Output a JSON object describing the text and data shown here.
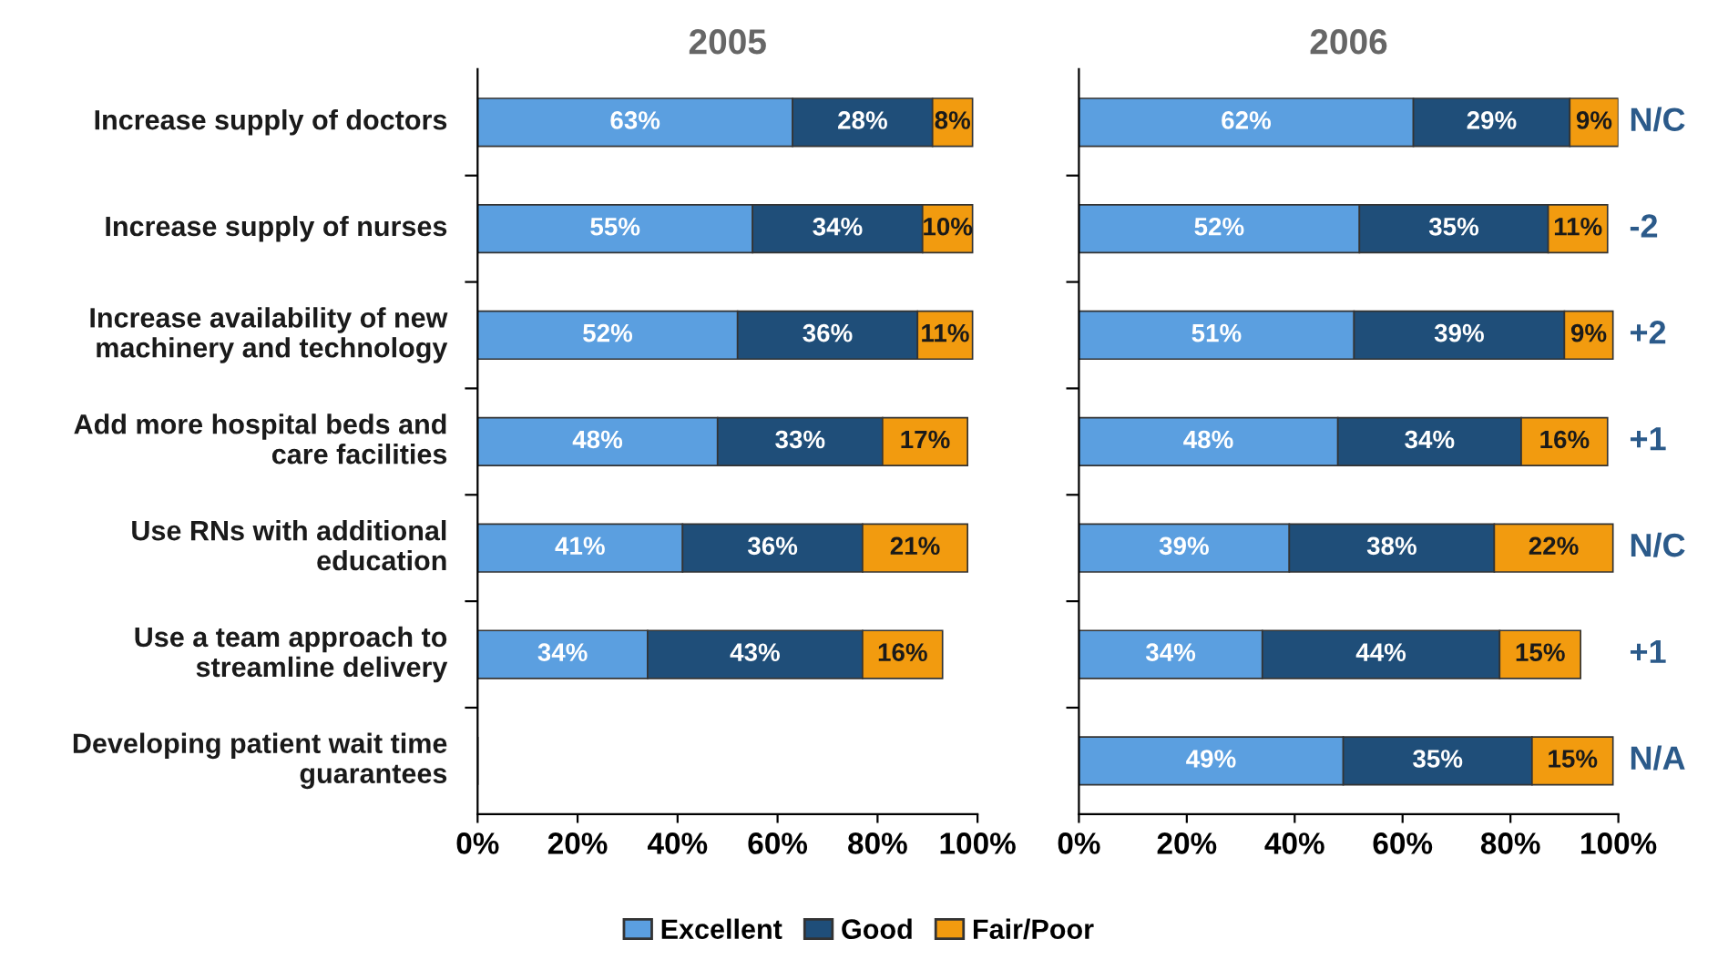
{
  "chart_data": [
    {
      "type": "bar",
      "title": "2005",
      "orientation": "horizontal",
      "stacked": true,
      "legend": false,
      "categories": [
        "Increase supply of doctors",
        "Increase supply of nurses",
        "Increase availability of new\nmachinery and technology",
        "Add more hospital beds and\ncare facilities",
        "Use RNs with additional\neducation",
        "Use a team approach to\nstreamline delivery",
        "Developing patient wait time\nguarantees"
      ],
      "series": [
        {
          "color": "#5b9fe0",
          "values": [
            63,
            55,
            52,
            48,
            41,
            34,
            null
          ],
          "value_labels": [
            "63%",
            "55%",
            "52%",
            "48%",
            "41%",
            "34%",
            null
          ]
        },
        {
          "color": "#1f4e79",
          "values": [
            28,
            34,
            36,
            33,
            36,
            43,
            null
          ],
          "value_labels": [
            "28%",
            "34%",
            "36%",
            "33%",
            "36%",
            "43%",
            null
          ]
        },
        {
          "color": "#f29b0f",
          "values": [
            8,
            10,
            11,
            17,
            21,
            16,
            null
          ],
          "value_labels": [
            "8%",
            "10%",
            "11%",
            "17%",
            "21%",
            "16%",
            null
          ]
        }
      ],
      "xlim": [
        0,
        100
      ],
      "xticks": [
        {
          "value": 0,
          "label": "0%"
        },
        {
          "value": 20,
          "label": "20%"
        },
        {
          "value": 40,
          "label": "40%"
        },
        {
          "value": 60,
          "label": "60%"
        },
        {
          "value": 80,
          "label": "80%"
        },
        {
          "value": 100,
          "label": "100%"
        }
      ]
    },
    {
      "type": "bar",
      "title": "2006",
      "orientation": "horizontal",
      "stacked": true,
      "legend": "bottom",
      "tick_labels": "x",
      "categories": [
        null,
        null,
        null,
        null,
        null,
        null,
        null
      ],
      "series": [
        {
          "name": "Excellent",
          "color": "#5b9fe0",
          "values": [
            62,
            52,
            51,
            48,
            39,
            34,
            49
          ],
          "value_labels": [
            "62%",
            "52%",
            "51%",
            "48%",
            "39%",
            "34%",
            "49%"
          ]
        },
        {
          "name": "Good",
          "color": "#1f4e79",
          "values": [
            29,
            35,
            39,
            34,
            38,
            44,
            35
          ],
          "value_labels": [
            "29%",
            "35%",
            "39%",
            "34%",
            "38%",
            "44%",
            "35%"
          ]
        },
        {
          "name": "Fair/Poor",
          "color": "#f29b0f",
          "values": [
            9,
            11,
            9,
            16,
            22,
            15,
            15
          ],
          "value_labels": [
            "9%",
            "11%",
            "9%",
            "16%",
            "22%",
            "15%",
            "15%"
          ]
        }
      ],
      "xlim": [
        0,
        100
      ],
      "xticks": [
        {
          "value": 0,
          "label": "0%"
        },
        {
          "value": 20,
          "label": "20%"
        },
        {
          "value": 40,
          "label": "40%"
        },
        {
          "value": 60,
          "label": "60%"
        },
        {
          "value": 80,
          "label": "80%"
        },
        {
          "value": 100,
          "label": "100%"
        }
      ],
      "annotations": [
        "N/C",
        "-2",
        "+2",
        "+1",
        "N/C",
        "+1",
        "N/A"
      ]
    }
  ]
}
